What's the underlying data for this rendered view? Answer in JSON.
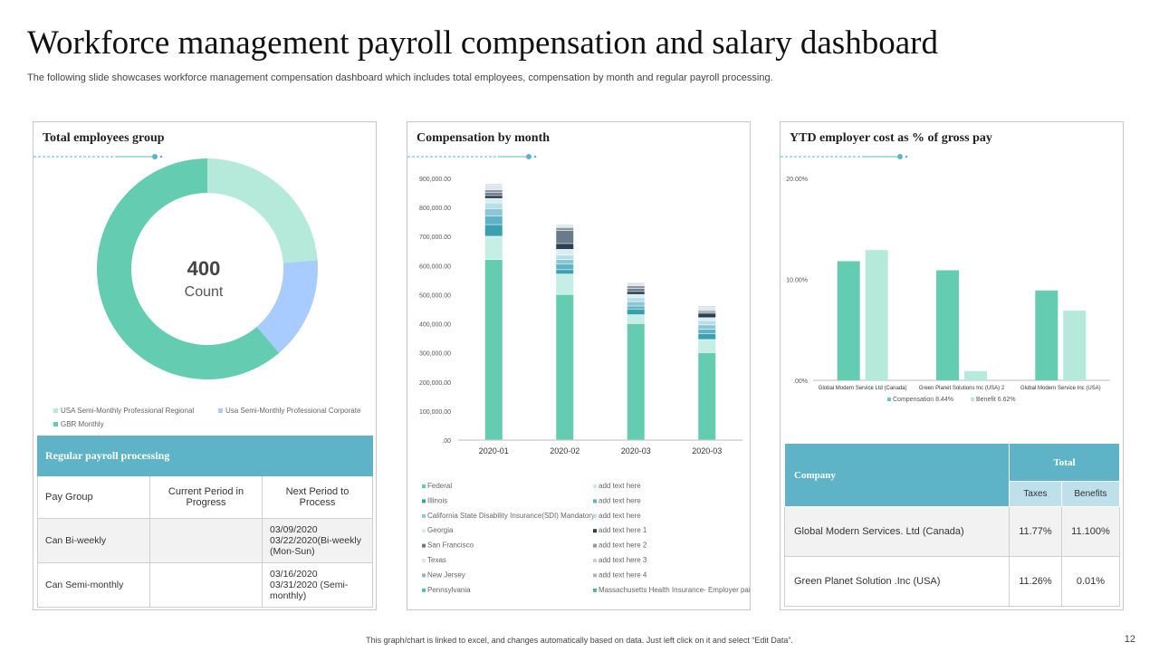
{
  "header": {
    "title": "Workforce management payroll compensation and salary dashboard",
    "subtitle": "The following slide showcases workforce management compensation dashboard which includes total employees, compensation by month and regular payroll processing."
  },
  "colors": {
    "teal": "#64ccb0",
    "mint": "#b5eadb",
    "blue": "#a8ccff",
    "header": "#5fb3c6",
    "subheader": "#bde0ea"
  },
  "donut": {
    "title": "Total employees group",
    "value": "400",
    "label": "Count",
    "chart_data": {
      "type": "pie",
      "title": "Total employees group",
      "center_value": "400",
      "center_label": "Count",
      "labels": [
        "USA Semi-Monthly Professional Regional",
        "Usa Semi-Monthly Professional Corporate",
        "GBR Monthly"
      ],
      "values": [
        95,
        60,
        245
      ],
      "colors": [
        "#b5eadb",
        "#a8ccff",
        "#64ccb0"
      ]
    },
    "legend": [
      "USA Semi-Monthly Professional Regional",
      "Usa Semi-Monthly Professional Corporate",
      "GBR Monthly"
    ]
  },
  "payroll": {
    "title": "Regular payroll processing",
    "columns": [
      "Pay Group",
      "Current Period in Progress",
      "Next Period to Process"
    ],
    "rows": [
      {
        "group": "Can Bi-weekly",
        "current": "",
        "next": "03/09/2020 03/22/2020(Bi-weekly (Mon-Sun)"
      },
      {
        "group": "Can Semi-monthly",
        "current": "",
        "next": "03/16/2020 03/31/2020 (Semi-monthly)"
      }
    ]
  },
  "compensation": {
    "title": "Compensation by month",
    "chart_data": {
      "type": "bar",
      "stacked": true,
      "title": "Compensation by month",
      "categories": [
        "2020-01",
        "2020-02",
        "2020-03",
        "2020-03"
      ],
      "y_ticks": [
        ".00",
        "100,000.00",
        "200,000.00",
        "300,000.00",
        "400,000.00",
        "500,000.00",
        "600,000.00",
        "700,000.00",
        "800,000.00",
        "900,000.00"
      ],
      "ylim": [
        0,
        900000
      ],
      "series": [
        {
          "name": "Federal",
          "color": "#64ccb0",
          "values": [
            620000,
            500000,
            400000,
            300000
          ]
        },
        {
          "name": "add text here",
          "color": "#c5efe4",
          "values": [
            80000,
            70000,
            30000,
            45000
          ]
        },
        {
          "name": "Illinois",
          "color": "#3a9fae",
          "values": [
            40000,
            15000,
            20000,
            20000
          ]
        },
        {
          "name": "add text here",
          "color": "#5fb3c6",
          "values": [
            30000,
            20000,
            10000,
            15000
          ]
        },
        {
          "name": "California State Disability Insurance(SDI) Mandatory",
          "color": "#8bc6d4",
          "values": [
            25000,
            15000,
            15000,
            15000
          ]
        },
        {
          "name": "add text here",
          "color": "#b8dee8",
          "values": [
            20000,
            15000,
            15000,
            15000
          ]
        },
        {
          "name": "Georgia",
          "color": "#d6eef3",
          "values": [
            15000,
            20000,
            10000,
            10000
          ]
        },
        {
          "name": "add text here 1",
          "color": "#2c3e50",
          "values": [
            10000,
            20000,
            10000,
            15000
          ]
        },
        {
          "name": "San Francisco",
          "color": "#6b7a8a",
          "values": [
            10000,
            45000,
            10000,
            5000
          ]
        },
        {
          "name": "add text here 2",
          "color": "#8c98a6",
          "values": [
            10000,
            10000,
            10000,
            5000
          ]
        },
        {
          "name": "Texas",
          "color": "#dfe5ea",
          "values": [
            15000,
            5000,
            5000,
            10000
          ]
        },
        {
          "name": "add text here 3",
          "color": "#c7d0d8",
          "values": [
            5000,
            5000,
            5000,
            5000
          ]
        }
      ]
    },
    "legend_left": [
      "Federal",
      "Illinois",
      "California State Disability Insurance(SDI) Mandatory",
      "Georgia",
      "San Francisco",
      "Texas",
      "New Jersey",
      "Pennsylvania"
    ],
    "legend_right": [
      "add text here",
      "add text here",
      "add text here",
      "add text here 1",
      "add text here 2",
      "add text here 3",
      "add text here 4",
      "Massachusetts Health Insurance- Employer paid"
    ],
    "legend_left_colors": [
      "#64ccb0",
      "#3a9fae",
      "#8bc6d4",
      "#d6eef3",
      "#6b7a8a",
      "#dfe5ea",
      "#9fb0bd",
      "#5fb3c6"
    ],
    "legend_right_colors": [
      "#c5efe4",
      "#5fb3c6",
      "#b8dee8",
      "#2c3e50",
      "#8c98a6",
      "#c7d0d8",
      "#aab5c0",
      "#4db6a0"
    ]
  },
  "ytd": {
    "title": "YTD employer cost as % of gross pay",
    "chart_data": {
      "type": "bar",
      "title": "YTD employer cost as % of gross pay",
      "categories": [
        "Global Modern Service Ltd (Canada)",
        "Green Planet Solutions Inc (USA) 2",
        "Global Modern Service Inc (USA)"
      ],
      "y_ticks": [
        ".00%",
        "10.00%",
        "20.00%"
      ],
      "ylim": [
        0,
        20
      ],
      "series": [
        {
          "name": "Compensation 8.44%",
          "color": "#64ccb0",
          "values": [
            11.8,
            10.9,
            8.9
          ]
        },
        {
          "name": "Benefit 6.62%",
          "color": "#b5eadb",
          "values": [
            12.9,
            0.9,
            6.9
          ]
        }
      ]
    },
    "legend": [
      "Compensation 8.44%",
      "Benefit 6.62%"
    ]
  },
  "company_table": {
    "col_company": "Company",
    "col_total": "Total",
    "col_taxes": "Taxes",
    "col_benefits": "Benefits",
    "rows": [
      {
        "company": "Global Modern Services. Ltd (Canada)",
        "taxes": "11.77%",
        "benefits": "11.100%"
      },
      {
        "company": "Green Planet Solution .Inc (USA)",
        "taxes": "11.26%",
        "benefits": "0.01%"
      }
    ]
  },
  "footer": {
    "note": "This graph/chart is linked to excel, and changes automatically based on data. Just left click on it and select “Edit Data”.",
    "page": "12"
  }
}
